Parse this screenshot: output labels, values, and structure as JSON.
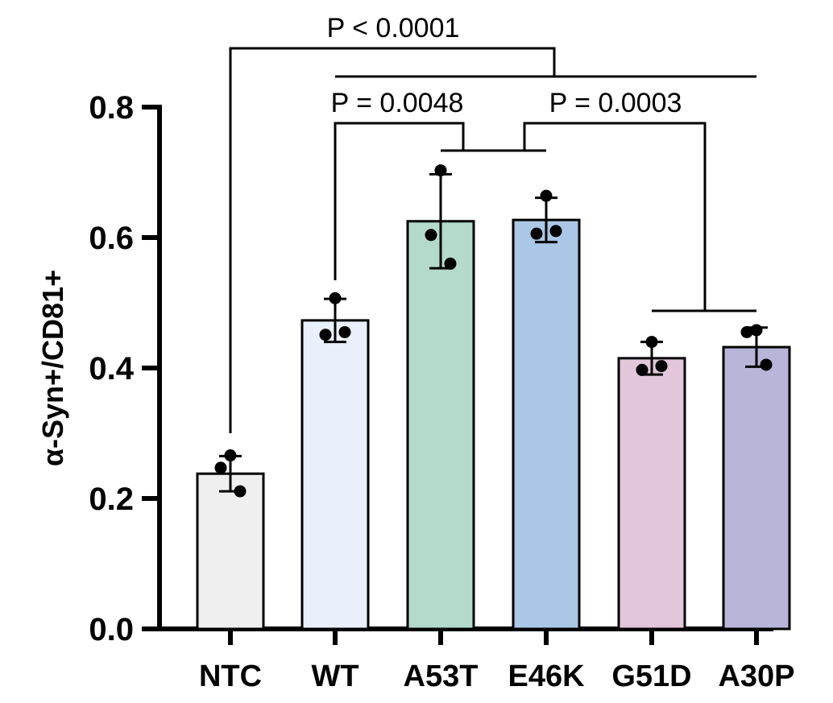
{
  "chart_data": {
    "type": "bar",
    "title": "",
    "xlabel": "",
    "ylabel": "α-Syn+/CD81+",
    "ylim": [
      0,
      0.8
    ],
    "yticks": [
      "0.0",
      "0.2",
      "0.4",
      "0.6",
      "0.8"
    ],
    "categories": [
      "NTC",
      "WT",
      "A53T",
      "E46K",
      "G51D",
      "A30P"
    ],
    "values": [
      0.238,
      0.473,
      0.625,
      0.627,
      0.415,
      0.432
    ],
    "error": [
      0.027,
      0.033,
      0.072,
      0.034,
      0.025,
      0.03
    ],
    "points": [
      [
        0.266,
        0.247,
        0.211
      ],
      [
        0.507,
        0.451,
        0.455
      ],
      [
        0.703,
        0.604,
        0.56
      ],
      [
        0.664,
        0.606,
        0.61
      ],
      [
        0.44,
        0.397,
        0.403
      ],
      [
        0.458,
        0.455,
        0.405
      ]
    ],
    "colors": [
      "#efefef",
      "#eaf0fb",
      "#b3dacb",
      "#aac7e6",
      "#e2c6da",
      "#b8b5d9"
    ],
    "comparisons": [
      {
        "label": "P < 0.0001"
      },
      {
        "label": "P = 0.0048"
      },
      {
        "label": "P = 0.0003"
      }
    ],
    "grid": false,
    "legend": "none"
  }
}
